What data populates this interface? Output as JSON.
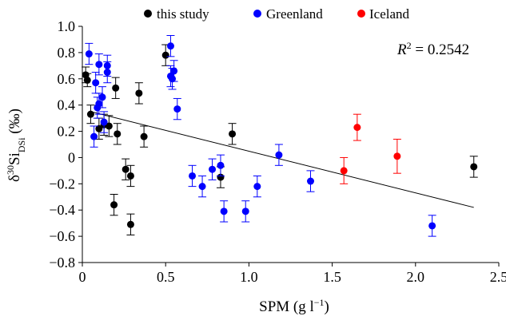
{
  "chart_data": {
    "type": "scatter",
    "xlabel_main": "SPM (g l",
    "xlabel_sup": "−1",
    "xlabel_end": ")",
    "ylabel_main": "δ",
    "ylabel_sup": "30",
    "ylabel_si": "Si",
    "ylabel_sub": "DSi",
    "ylabel_end": " (‰)",
    "xlim": [
      0,
      2.5
    ],
    "ylim": [
      -0.8,
      1.0
    ],
    "x_ticks": [
      "0",
      "0.5",
      "1.0",
      "1.5",
      "2.0",
      "2.5"
    ],
    "y_ticks": [
      "−0.8",
      "−0.6",
      "−0.4",
      "−0.2",
      "0",
      "0.2",
      "0.4",
      "0.6",
      "0.8",
      "1.0"
    ],
    "x_tick_values": [
      0,
      0.5,
      1.0,
      1.5,
      2.0,
      2.5
    ],
    "y_tick_values": [
      -0.8,
      -0.6,
      -0.4,
      -0.2,
      0,
      0.2,
      0.4,
      0.6,
      0.8,
      1.0
    ],
    "legend_placement": "top",
    "annotation": {
      "r_letter": "R",
      "r_sup": "2",
      "r_value": " = 0.2542"
    },
    "trendline": {
      "x": [
        0.05,
        2.35
      ],
      "y": [
        0.35,
        -0.38
      ]
    },
    "series": [
      {
        "name": "this study",
        "color": "#000000",
        "points": [
          {
            "x": 0.02,
            "y": 0.63,
            "err": 0.06
          },
          {
            "x": 0.03,
            "y": 0.59,
            "err": 0.05
          },
          {
            "x": 0.05,
            "y": 0.33,
            "err": 0.07
          },
          {
            "x": 0.1,
            "y": 0.22,
            "err": 0.08
          },
          {
            "x": 0.13,
            "y": 0.25,
            "err": 0.08
          },
          {
            "x": 0.16,
            "y": 0.24,
            "err": 0.08
          },
          {
            "x": 0.2,
            "y": 0.53,
            "err": 0.08
          },
          {
            "x": 0.21,
            "y": 0.18,
            "err": 0.08
          },
          {
            "x": 0.19,
            "y": -0.36,
            "err": 0.08
          },
          {
            "x": 0.26,
            "y": -0.09,
            "err": 0.08
          },
          {
            "x": 0.29,
            "y": -0.14,
            "err": 0.08
          },
          {
            "x": 0.29,
            "y": -0.51,
            "err": 0.08
          },
          {
            "x": 0.34,
            "y": 0.49,
            "err": 0.08
          },
          {
            "x": 0.37,
            "y": 0.16,
            "err": 0.08
          },
          {
            "x": 0.5,
            "y": 0.78,
            "err": 0.08
          },
          {
            "x": 0.83,
            "y": -0.15,
            "err": 0.08
          },
          {
            "x": 0.9,
            "y": 0.18,
            "err": 0.08
          },
          {
            "x": 2.35,
            "y": -0.07,
            "err": 0.08
          }
        ]
      },
      {
        "name": "Greenland",
        "color": "#0000ff",
        "points": [
          {
            "x": 0.04,
            "y": 0.79,
            "err": 0.08
          },
          {
            "x": 0.08,
            "y": 0.57,
            "err": 0.08
          },
          {
            "x": 0.07,
            "y": 0.16,
            "err": 0.08
          },
          {
            "x": 0.09,
            "y": 0.38,
            "err": 0.08
          },
          {
            "x": 0.1,
            "y": 0.41,
            "err": 0.08
          },
          {
            "x": 0.1,
            "y": 0.71,
            "err": 0.08
          },
          {
            "x": 0.12,
            "y": 0.46,
            "err": 0.08
          },
          {
            "x": 0.13,
            "y": 0.27,
            "err": 0.08
          },
          {
            "x": 0.15,
            "y": 0.7,
            "err": 0.08
          },
          {
            "x": 0.15,
            "y": 0.65,
            "err": 0.08
          },
          {
            "x": 0.53,
            "y": 0.85,
            "err": 0.08
          },
          {
            "x": 0.53,
            "y": 0.62,
            "err": 0.08
          },
          {
            "x": 0.54,
            "y": 0.6,
            "err": 0.08
          },
          {
            "x": 0.55,
            "y": 0.66,
            "err": 0.08
          },
          {
            "x": 0.57,
            "y": 0.37,
            "err": 0.08
          },
          {
            "x": 0.66,
            "y": -0.14,
            "err": 0.08
          },
          {
            "x": 0.72,
            "y": -0.22,
            "err": 0.08
          },
          {
            "x": 0.78,
            "y": -0.09,
            "err": 0.08
          },
          {
            "x": 0.83,
            "y": -0.06,
            "err": 0.08
          },
          {
            "x": 0.85,
            "y": -0.41,
            "err": 0.08
          },
          {
            "x": 0.98,
            "y": -0.41,
            "err": 0.08
          },
          {
            "x": 1.05,
            "y": -0.22,
            "err": 0.08
          },
          {
            "x": 1.18,
            "y": 0.02,
            "err": 0.08
          },
          {
            "x": 1.37,
            "y": -0.18,
            "err": 0.08
          },
          {
            "x": 2.1,
            "y": -0.52,
            "err": 0.08
          }
        ]
      },
      {
        "name": "Iceland",
        "color": "#ff0000",
        "points": [
          {
            "x": 1.57,
            "y": -0.1,
            "err": 0.1
          },
          {
            "x": 1.65,
            "y": 0.23,
            "err": 0.1
          },
          {
            "x": 1.89,
            "y": 0.01,
            "err": 0.13
          }
        ]
      }
    ]
  }
}
